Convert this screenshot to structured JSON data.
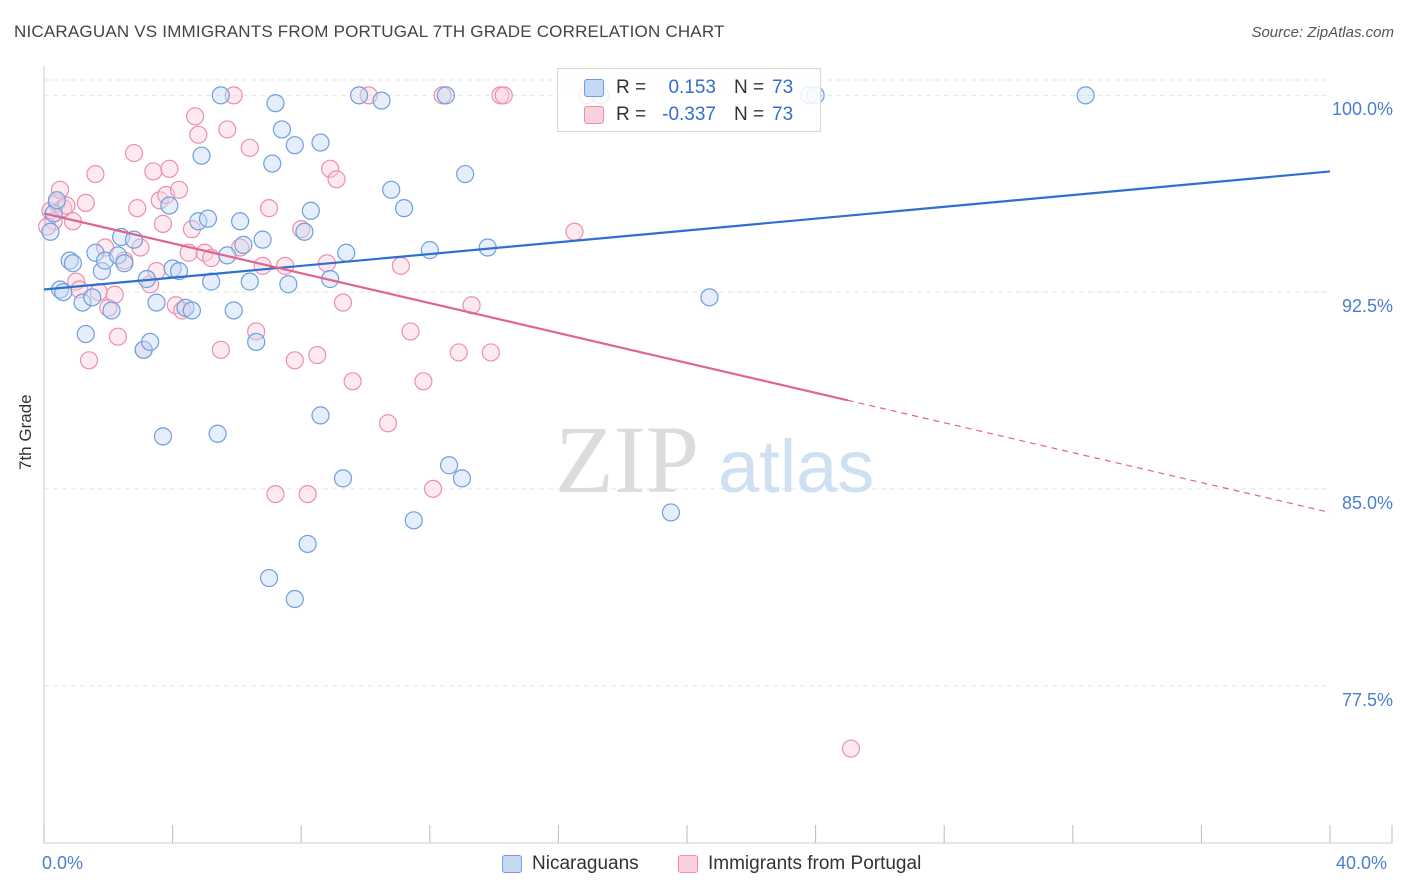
{
  "title": "NICARAGUAN VS IMMIGRANTS FROM PORTUGAL 7TH GRADE CORRELATION CHART",
  "source": "Source: ZipAtlas.com",
  "watermark": {
    "zip": "ZIP",
    "atlas": "atlas"
  },
  "colors": {
    "blue": "#6f9fdc",
    "blue_fill": "#c5d9f4",
    "blue_line": "#2f6fce",
    "pink": "#ec8fae",
    "pink_fill": "#f9d0de",
    "pink_line": "#e0648f",
    "tick_text": "#4a7fd0",
    "grid": "#e5e5e5"
  },
  "stats": [
    {
      "r_label": "R =",
      "r_value": "0.153",
      "n_label": "N =",
      "n_value": "73",
      "series": "blue"
    },
    {
      "r_label": "R =",
      "r_value": "-0.337",
      "n_label": "N =",
      "n_value": "73",
      "series": "pink"
    }
  ],
  "legend": [
    {
      "label": "Nicaraguans",
      "series": "blue"
    },
    {
      "label": "Immigrants from Portugal",
      "series": "pink"
    }
  ],
  "chart_data": {
    "type": "scatter",
    "title": "NICARAGUAN VS IMMIGRANTS FROM PORTUGAL 7TH GRADE CORRELATION CHART",
    "xlabel": "",
    "ylabel": "7th Grade",
    "xlim": [
      0,
      40
    ],
    "ylim": [
      71.5,
      101.5
    ],
    "x_tick_labels": [
      "0.0%",
      "40.0%"
    ],
    "y_ticks": [
      77.5,
      85.0,
      92.5,
      100.0
    ],
    "y_tick_labels": [
      "77.5%",
      "85.0%",
      "92.5%",
      "100.0%"
    ],
    "grid": true,
    "legend_position": "bottom-center",
    "series": [
      {
        "name": "Nicaraguans",
        "color": "blue",
        "trend": {
          "x": [
            0,
            40
          ],
          "y": [
            92.6,
            97.1
          ],
          "dashed_from": null
        },
        "points": [
          [
            0.2,
            94.8
          ],
          [
            0.3,
            95.5
          ],
          [
            0.4,
            96.0
          ],
          [
            0.5,
            92.6
          ],
          [
            0.8,
            93.7
          ],
          [
            0.9,
            93.6
          ],
          [
            1.2,
            92.1
          ],
          [
            1.3,
            90.9
          ],
          [
            1.5,
            92.3
          ],
          [
            1.6,
            94.0
          ],
          [
            1.8,
            93.3
          ],
          [
            1.9,
            93.7
          ],
          [
            2.1,
            91.8
          ],
          [
            2.3,
            93.9
          ],
          [
            2.4,
            94.6
          ],
          [
            2.5,
            93.6
          ],
          [
            2.8,
            94.5
          ],
          [
            3.1,
            90.3
          ],
          [
            3.2,
            93.0
          ],
          [
            3.3,
            90.6
          ],
          [
            3.5,
            92.1
          ],
          [
            3.7,
            87.0
          ],
          [
            3.9,
            95.8
          ],
          [
            4.0,
            93.4
          ],
          [
            4.2,
            93.3
          ],
          [
            4.4,
            91.9
          ],
          [
            4.6,
            91.8
          ],
          [
            4.8,
            95.2
          ],
          [
            4.9,
            97.7
          ],
          [
            5.1,
            95.3
          ],
          [
            5.2,
            92.9
          ],
          [
            5.4,
            87.1
          ],
          [
            5.7,
            93.9
          ],
          [
            5.5,
            100.0
          ],
          [
            5.9,
            91.8
          ],
          [
            6.1,
            95.2
          ],
          [
            6.2,
            94.3
          ],
          [
            6.4,
            92.9
          ],
          [
            6.6,
            90.6
          ],
          [
            6.8,
            94.5
          ],
          [
            7.0,
            81.6
          ],
          [
            7.1,
            97.4
          ],
          [
            7.2,
            99.7
          ],
          [
            7.4,
            98.7
          ],
          [
            7.6,
            92.8
          ],
          [
            7.8,
            98.1
          ],
          [
            7.8,
            80.8
          ],
          [
            8.1,
            94.8
          ],
          [
            8.2,
            82.9
          ],
          [
            8.3,
            95.6
          ],
          [
            8.6,
            98.2
          ],
          [
            8.6,
            87.8
          ],
          [
            8.9,
            93.0
          ],
          [
            9.3,
            85.4
          ],
          [
            9.4,
            94.0
          ],
          [
            9.8,
            100.0
          ],
          [
            10.5,
            99.8
          ],
          [
            10.8,
            96.4
          ],
          [
            11.2,
            95.7
          ],
          [
            11.5,
            83.8
          ],
          [
            12.0,
            94.1
          ],
          [
            12.5,
            100.0
          ],
          [
            12.6,
            85.9
          ],
          [
            13.0,
            85.4
          ],
          [
            13.1,
            97.0
          ],
          [
            13.8,
            94.2
          ],
          [
            17.3,
            100.0
          ],
          [
            19.5,
            84.1
          ],
          [
            20.7,
            92.3
          ],
          [
            23.8,
            100.0
          ],
          [
            24.0,
            100.0
          ],
          [
            32.4,
            100.0
          ],
          [
            0.6,
            92.5
          ]
        ]
      },
      {
        "name": "Immigrants from Portugal",
        "color": "pink",
        "trend": {
          "x": [
            0,
            40
          ],
          "y": [
            95.5,
            84.1
          ],
          "dashed_from": 25
        },
        "points": [
          [
            0.2,
            95.6
          ],
          [
            0.3,
            95.2
          ],
          [
            0.4,
            95.9
          ],
          [
            0.5,
            96.4
          ],
          [
            0.6,
            95.7
          ],
          [
            0.7,
            95.8
          ],
          [
            0.9,
            95.2
          ],
          [
            1.0,
            92.9
          ],
          [
            1.1,
            92.6
          ],
          [
            1.3,
            95.9
          ],
          [
            1.4,
            89.9
          ],
          [
            1.6,
            97.0
          ],
          [
            1.7,
            92.5
          ],
          [
            1.9,
            94.2
          ],
          [
            2.0,
            91.9
          ],
          [
            2.2,
            92.4
          ],
          [
            2.3,
            90.8
          ],
          [
            2.5,
            93.7
          ],
          [
            2.8,
            97.8
          ],
          [
            2.9,
            95.7
          ],
          [
            3.0,
            94.2
          ],
          [
            3.1,
            90.3
          ],
          [
            3.3,
            92.8
          ],
          [
            3.4,
            97.1
          ],
          [
            3.5,
            93.3
          ],
          [
            3.6,
            96.0
          ],
          [
            3.8,
            96.2
          ],
          [
            3.9,
            97.2
          ],
          [
            4.1,
            92.0
          ],
          [
            4.2,
            96.4
          ],
          [
            4.3,
            91.8
          ],
          [
            4.5,
            94.0
          ],
          [
            4.6,
            94.9
          ],
          [
            4.7,
            99.2
          ],
          [
            4.8,
            98.5
          ],
          [
            5.0,
            94.0
          ],
          [
            5.2,
            93.8
          ],
          [
            5.5,
            90.3
          ],
          [
            5.7,
            98.7
          ],
          [
            5.9,
            100.0
          ],
          [
            6.1,
            94.2
          ],
          [
            6.4,
            98.0
          ],
          [
            6.6,
            91.0
          ],
          [
            6.8,
            93.5
          ],
          [
            7.0,
            95.7
          ],
          [
            7.2,
            84.8
          ],
          [
            7.5,
            93.5
          ],
          [
            7.8,
            89.9
          ],
          [
            8.0,
            94.9
          ],
          [
            8.2,
            84.8
          ],
          [
            8.5,
            90.1
          ],
          [
            8.8,
            93.6
          ],
          [
            8.9,
            97.2
          ],
          [
            9.1,
            96.8
          ],
          [
            9.3,
            92.1
          ],
          [
            9.6,
            89.1
          ],
          [
            10.1,
            100.0
          ],
          [
            10.7,
            87.5
          ],
          [
            11.1,
            93.5
          ],
          [
            11.4,
            91.0
          ],
          [
            11.8,
            89.1
          ],
          [
            12.1,
            85.0
          ],
          [
            12.4,
            100.0
          ],
          [
            12.9,
            90.2
          ],
          [
            13.3,
            92.0
          ],
          [
            13.9,
            90.2
          ],
          [
            14.2,
            100.0
          ],
          [
            14.3,
            100.0
          ],
          [
            16.5,
            94.8
          ],
          [
            16.9,
            100.0
          ],
          [
            25.1,
            75.1
          ],
          [
            0.1,
            95.0
          ],
          [
            3.7,
            95.1
          ]
        ]
      }
    ]
  }
}
